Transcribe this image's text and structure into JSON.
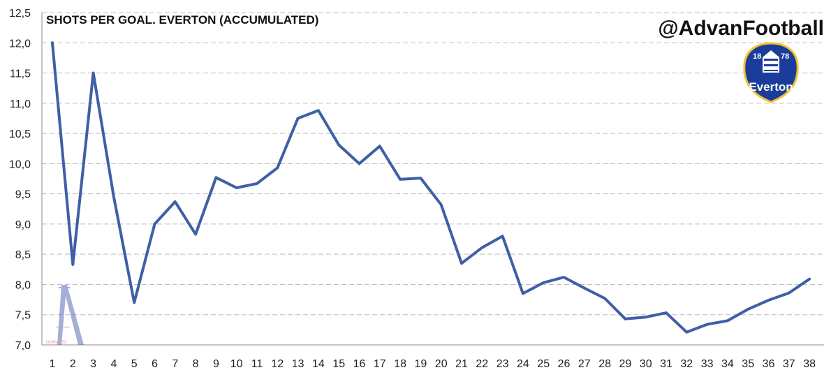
{
  "title": "SHOTS PER GOAL. EVERTON (ACCUMULATED)",
  "handle": "@AdvanFootball",
  "crest": {
    "text": "Everton",
    "year_left": "18",
    "year_right": "78"
  },
  "watermark": {
    "small_text": "FOOTBALL",
    "brand_text": "DVANCED"
  },
  "colors": {
    "line": "#3f5fa6",
    "grid": "#bdbdbd",
    "crest_blue": "#1a3d9b",
    "crest_gold": "#f2c230"
  },
  "chart_data": {
    "type": "line",
    "title": "SHOTS PER GOAL. EVERTON (ACCUMULATED)",
    "xlabel": "",
    "ylabel": "",
    "x": [
      1,
      2,
      3,
      4,
      5,
      6,
      7,
      8,
      9,
      10,
      11,
      12,
      13,
      14,
      15,
      16,
      17,
      18,
      19,
      20,
      21,
      22,
      23,
      24,
      25,
      26,
      27,
      28,
      29,
      30,
      31,
      32,
      33,
      34,
      35,
      36,
      37,
      38
    ],
    "x_tick_labels": [
      "1",
      "2",
      "3",
      "4",
      "5",
      "6",
      "7",
      "8",
      "9",
      "10",
      "11",
      "12",
      "13",
      "14",
      "15",
      "16",
      "17",
      "18",
      "19",
      "20",
      "21",
      "22",
      "23",
      "24",
      "25",
      "26",
      "27",
      "28",
      "29",
      "30",
      "31",
      "32",
      "33",
      "34",
      "35",
      "36",
      "37",
      "38"
    ],
    "y_ticks": [
      7.0,
      7.5,
      8.0,
      8.5,
      9.0,
      9.5,
      10.0,
      10.5,
      11.0,
      11.5,
      12.0,
      12.5
    ],
    "y_tick_labels": [
      "7,0",
      "7,5",
      "8,0",
      "8,5",
      "9,0",
      "9,5",
      "10,0",
      "10,5",
      "11,0",
      "11,5",
      "12,0",
      "12,5"
    ],
    "ylim": [
      7.0,
      12.5
    ],
    "grid": "horizontal dashed",
    "series": [
      {
        "values": [
          12.0,
          8.33,
          11.5,
          9.45,
          7.7,
          9.0,
          9.37,
          8.83,
          9.77,
          9.6,
          9.67,
          9.93,
          10.75,
          10.88,
          10.31,
          10.0,
          10.29,
          9.74,
          9.76,
          9.32,
          8.35,
          8.61,
          8.8,
          7.85,
          8.03,
          8.12,
          7.94,
          7.77,
          7.43,
          7.46,
          7.53,
          7.21,
          7.34,
          7.4,
          7.59,
          7.74,
          7.86,
          8.09
        ]
      }
    ]
  }
}
